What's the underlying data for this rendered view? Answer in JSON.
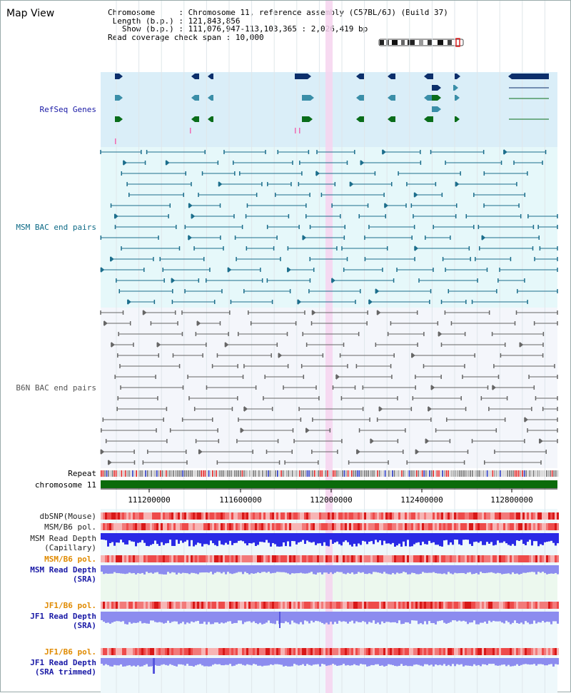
{
  "app_title": "Map View",
  "info": {
    "chromosome_label": "Chromosome",
    "chromosome_value": "Chromosome 11, reference assembly (C57BL/6J) (Build 37)",
    "length_label": "Length (b.p.)",
    "length_value": "121,843,856",
    "show_label": "Show (b.p.)",
    "show_value": "111,076,947-113,103,365 : 2,026,419 bp",
    "coverage_label": "Read coverage check span",
    "coverage_value": "10,000"
  },
  "tracks": {
    "refseq": "RefSeq Genes",
    "msm_bac": "MSM BAC end pairs",
    "b6n_bac": "B6N BAC end pairs",
    "repeat": "Repeat",
    "chromosome": "chromosome 11",
    "dbsnp": "dbSNP(Mouse)",
    "msm_b6_pol_1": "MSM/B6 pol.",
    "msm_depth_cap_1": "MSM Read Depth",
    "msm_depth_cap_2": "(Capillary)",
    "msm_b6_pol_2": "MSM/B6 pol.",
    "msm_depth_sra_1": "MSM Read Depth",
    "msm_depth_sra_2": "(SRA)",
    "jf1_b6_pol_1": "JF1/B6 pol.",
    "jf1_depth_sra_1": "JF1 Read Depth",
    "jf1_depth_sra_2": "(SRA)",
    "jf1_b6_pol_2": "JF1/B6 pol.",
    "jf1_depth_trim_1": "JF1 Read Depth",
    "jf1_depth_trim_2": "(SRA trimmed)"
  },
  "axis_ticks": [
    "111200000",
    "111600000",
    "112000000",
    "112400000",
    "112800000"
  ],
  "colors": {
    "refseq_bg": "#daeef8",
    "msm_bg": "#e6f8fa",
    "b6n_bg": "#f4f6fb",
    "highlight": "#f6d3ef",
    "gene_dark": "#0c2f6b",
    "gene_teal": "#3a8ea8",
    "gene_green": "#0a6d1a",
    "msm_line": "#1c6e8c",
    "b6n_line": "#666666",
    "chrom_bar": "#0b6b0b",
    "pol_red": "#ef3b3b",
    "depth_blue": "#2a2ae6",
    "depth_light": "#8c8cef",
    "label_blue": "#1a1aa6",
    "label_orange": "#e08a00"
  }
}
